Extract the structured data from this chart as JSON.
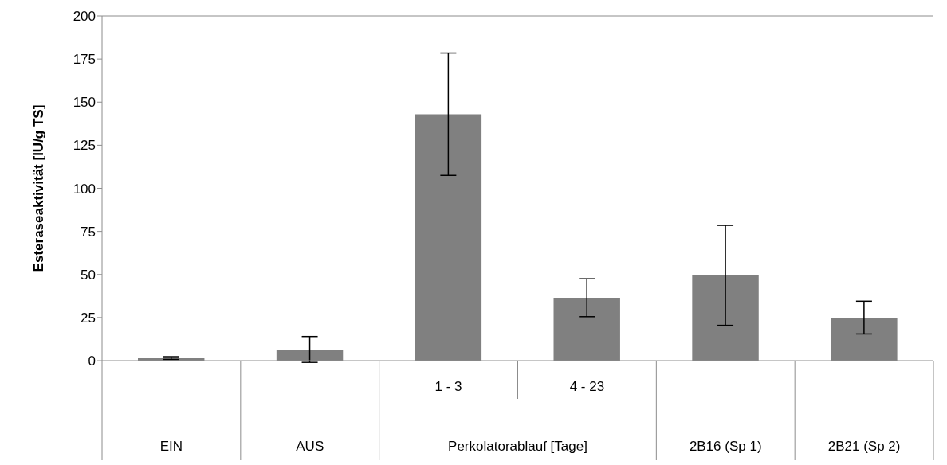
{
  "chart_data": {
    "type": "bar",
    "ylabel": "Esteraseaktivität [IU/g TS]",
    "categories": [
      "EIN",
      "AUS",
      "1 - 3",
      "4 - 23",
      "2B16 (Sp 1)",
      "2B21 (Sp 2)"
    ],
    "values": [
      1.5,
      6.5,
      143,
      36.5,
      49.5,
      25
    ],
    "errors": [
      0.8,
      7.5,
      35.5,
      11,
      29,
      9.5
    ],
    "color": "#808080",
    "ylim": [
      0,
      200
    ],
    "yticks": [
      0,
      25,
      50,
      75,
      100,
      125,
      150,
      175,
      200
    ],
    "annotations": [
      "Perkolatorablauf [Tage]"
    ],
    "grid": false,
    "legend": false
  }
}
